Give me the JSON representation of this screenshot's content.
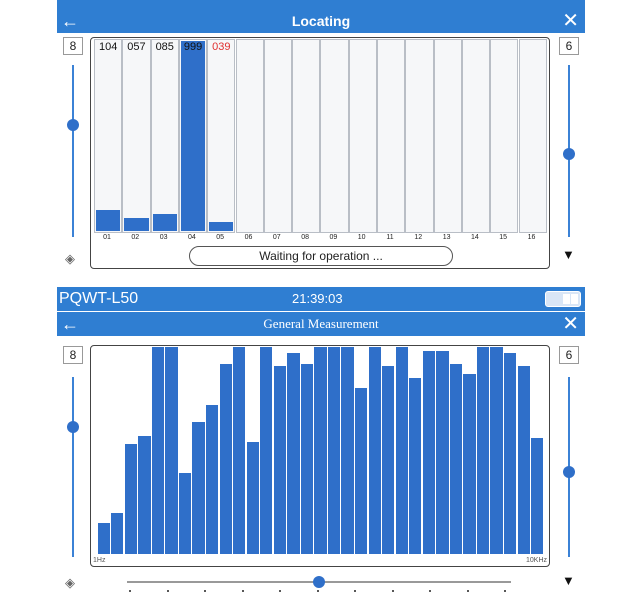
{
  "top": {
    "app_title": "Locating",
    "left_level": "8",
    "right_level": "6",
    "left_slider_level": 0.65,
    "right_slider_level": 0.48,
    "channels": [
      {
        "label": "01",
        "value": "104",
        "fill": 0.11,
        "highlight": false,
        "red": false
      },
      {
        "label": "02",
        "value": "057",
        "fill": 0.07,
        "highlight": false,
        "red": false
      },
      {
        "label": "03",
        "value": "085",
        "fill": 0.09,
        "highlight": false,
        "red": false
      },
      {
        "label": "04",
        "value": "999",
        "fill": 1.0,
        "highlight": true,
        "red": false
      },
      {
        "label": "05",
        "value": "039",
        "fill": 0.05,
        "highlight": false,
        "red": true
      },
      {
        "label": "06",
        "value": "",
        "fill": 0,
        "highlight": false,
        "red": false
      },
      {
        "label": "07",
        "value": "",
        "fill": 0,
        "highlight": false,
        "red": false
      },
      {
        "label": "08",
        "value": "",
        "fill": 0,
        "highlight": false,
        "red": false
      },
      {
        "label": "09",
        "value": "",
        "fill": 0,
        "highlight": false,
        "red": false
      },
      {
        "label": "10",
        "value": "",
        "fill": 0,
        "highlight": false,
        "red": false
      },
      {
        "label": "11",
        "value": "",
        "fill": 0,
        "highlight": false,
        "red": false
      },
      {
        "label": "12",
        "value": "",
        "fill": 0,
        "highlight": false,
        "red": false
      },
      {
        "label": "13",
        "value": "",
        "fill": 0,
        "highlight": false,
        "red": false
      },
      {
        "label": "14",
        "value": "",
        "fill": 0,
        "highlight": false,
        "red": false
      },
      {
        "label": "15",
        "value": "",
        "fill": 0,
        "highlight": false,
        "red": false
      },
      {
        "label": "16",
        "value": "",
        "fill": 0,
        "highlight": false,
        "red": false
      }
    ],
    "status_text": "Waiting for operation ..."
  },
  "bottom": {
    "device_name": "PQWT-L50",
    "time": "21:39:03",
    "app_title": "General Measurement",
    "left_level": "8",
    "right_level": "6",
    "left_slider_level": 0.72,
    "right_slider_level": 0.47,
    "axis_start": "1Hz",
    "axis_end": "10KHz",
    "bar_levels": [
      0.15,
      0.2,
      0.53,
      0.57,
      1.0,
      1.0,
      0.39,
      0.64,
      0.72,
      0.92,
      1.0,
      0.54,
      1.0,
      0.91,
      0.97,
      0.92,
      1.0,
      1.0,
      1.0,
      0.8,
      1.0,
      0.91,
      1.0,
      0.85,
      0.98,
      0.98,
      0.92,
      0.87,
      1.0,
      1.0,
      0.97,
      0.91,
      0.56
    ],
    "bottom_slider_level": 0.5
  },
  "icons": {
    "back": "arrow-left-icon",
    "close": "close-icon",
    "speaker": "speaker-icon",
    "antenna": "antenna-icon",
    "battery": "battery-icon"
  },
  "colors": {
    "accent": "#2f7ed2",
    "bar": "#2f6fc9",
    "alert": "#e03030"
  }
}
